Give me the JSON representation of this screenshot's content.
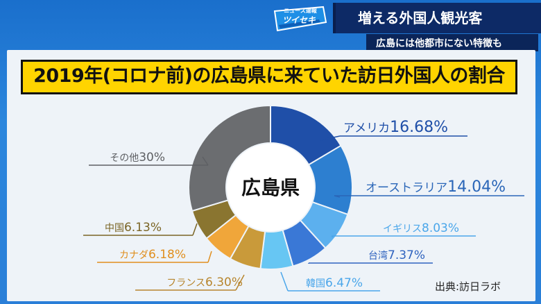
{
  "logo": {
    "small_text": "ニュース速報",
    "main_text": "ツイセキ"
  },
  "headline": "増える外国人観光客",
  "subheadline": "広島には他都市にない特徴も",
  "source": "出典:訪日ラボ",
  "chart_data": {
    "type": "pie",
    "title": "2019年(コロナ前)の広島県に来ていた訪日外国人の割合",
    "center_label": "広島県",
    "slices": [
      {
        "label": "アメリカ",
        "value": 16.68,
        "value_label": "16.68%",
        "color": "#1f4fa8",
        "label_color": "#1f4fa8"
      },
      {
        "label": "オーストラリア",
        "value": 14.04,
        "value_label": "14.04%",
        "color": "#2d7fd0",
        "label_color": "#2a66b8"
      },
      {
        "label": "イギリス",
        "value": 8.03,
        "value_label": "8.03%",
        "color": "#5cb0ee",
        "label_color": "#4aa6ea"
      },
      {
        "label": "台湾",
        "value": 7.37,
        "value_label": "7.37%",
        "color": "#3a78d6",
        "label_color": "#2f63bf"
      },
      {
        "label": "韓国",
        "value": 6.47,
        "value_label": "6.47%",
        "color": "#67c6f3",
        "label_color": "#4aa6ea"
      },
      {
        "label": "フランス",
        "value": 6.3,
        "value_label": "6.30%",
        "color": "#c99a3a",
        "label_color": "#b7852d"
      },
      {
        "label": "カナダ",
        "value": 6.18,
        "value_label": "6.18%",
        "color": "#f0a63a",
        "label_color": "#e08e1d"
      },
      {
        "label": "中国",
        "value": 6.13,
        "value_label": "6.13%",
        "color": "#8a7530",
        "label_color": "#7a6424"
      },
      {
        "label": "その他",
        "value": 30,
        "value_label": "30%",
        "color": "#6b6d70",
        "label_color": "#5e6064"
      }
    ]
  }
}
